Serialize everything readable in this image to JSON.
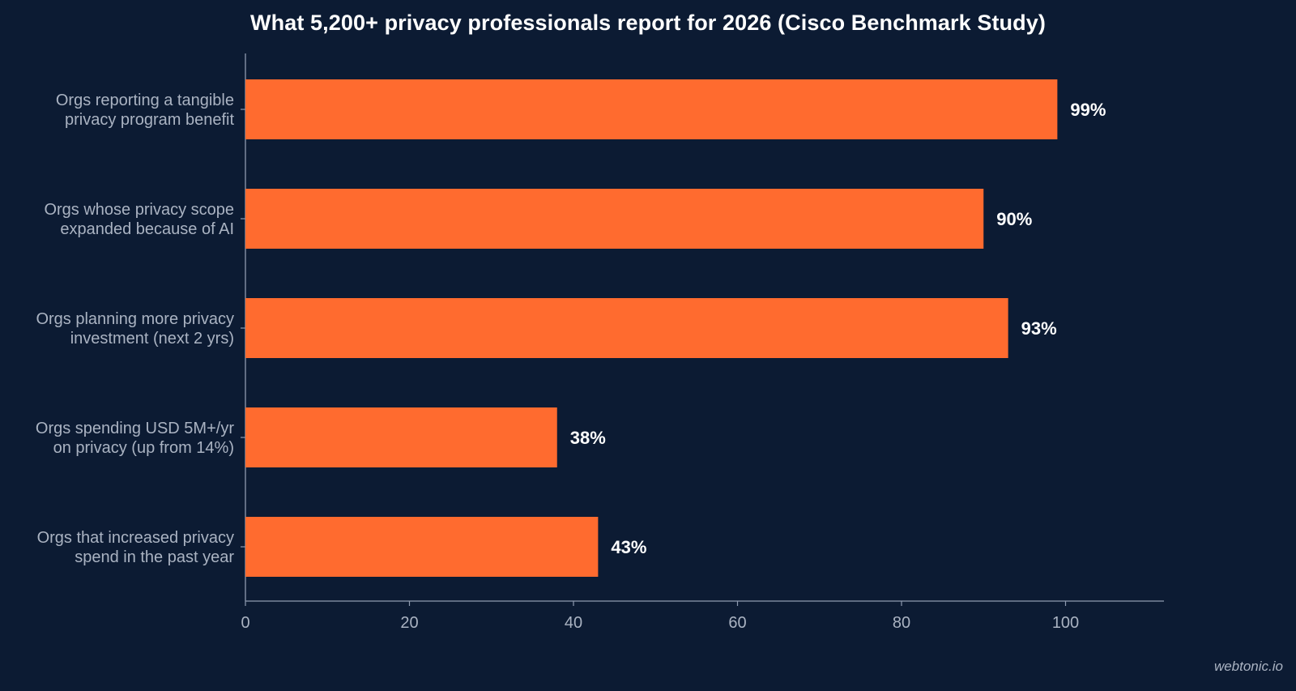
{
  "colors": {
    "background": "#0c1b33",
    "bar": "#ff6b2f",
    "axis": "#8f9bb0",
    "category_label": "#aab3c2",
    "tick_label": "#aab3c2",
    "value_label": "#ffffff",
    "title": "#ffffff"
  },
  "watermark": "webtonic.io",
  "chart_data": {
    "type": "bar",
    "orientation": "horizontal",
    "title": "What 5,200+ privacy professionals report for 2026 (Cisco Benchmark Study)",
    "xlabel": "",
    "ylabel": "",
    "xlim": [
      0,
      112
    ],
    "xticks": [
      0,
      20,
      40,
      60,
      80,
      100
    ],
    "grid": false,
    "categories": [
      [
        "Orgs reporting a tangible",
        "privacy program benefit"
      ],
      [
        "Orgs whose privacy scope",
        "expanded because of AI"
      ],
      [
        "Orgs planning more privacy",
        "investment (next 2 yrs)"
      ],
      [
        "Orgs spending USD 5M+/yr",
        "on privacy (up from 14%)"
      ],
      [
        "Orgs that increased privacy",
        "spend in the past year"
      ]
    ],
    "values": [
      99,
      90,
      93,
      38,
      43
    ],
    "value_labels": [
      "99%",
      "90%",
      "93%",
      "38%",
      "43%"
    ]
  }
}
